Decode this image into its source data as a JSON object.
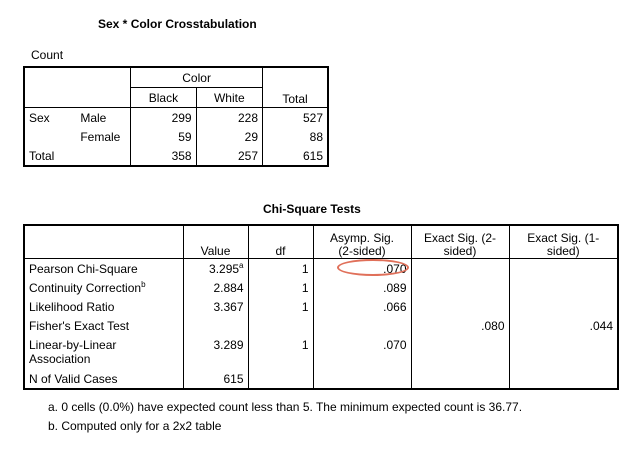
{
  "crosstab": {
    "title": "Sex * Color Crosstabulation",
    "count_label": "Count",
    "color_header": "Color",
    "col_black": "Black",
    "col_white": "White",
    "col_total": "Total",
    "row_group": "Sex",
    "rows": [
      {
        "label": "Male",
        "black": "299",
        "white": "228",
        "total": "527"
      },
      {
        "label": "Female",
        "black": "59",
        "white": "29",
        "total": "88"
      }
    ],
    "total_row": {
      "label": "Total",
      "black": "358",
      "white": "257",
      "total": "615"
    }
  },
  "chisq": {
    "title": "Chi-Square Tests",
    "headers": {
      "value": "Value",
      "df": "df",
      "asymp_1": "Asymp. Sig.",
      "asymp_2": "(2-sided)",
      "exact2_1": "Exact Sig. (2-",
      "exact2_2": "sided)",
      "exact1_1": "Exact Sig. (1-",
      "exact1_2": "sided)"
    },
    "rows": [
      {
        "label": "Pearson Chi-Square",
        "label_sup": "",
        "value": "3.295",
        "value_sup": "a",
        "df": "1",
        "asymp": ".070",
        "exact2": "",
        "exact1": ""
      },
      {
        "label": "Continuity Correction",
        "label_sup": "b",
        "value": "2.884",
        "value_sup": "",
        "df": "1",
        "asymp": ".089",
        "exact2": "",
        "exact1": ""
      },
      {
        "label": "Likelihood Ratio",
        "label_sup": "",
        "value": "3.367",
        "value_sup": "",
        "df": "1",
        "asymp": ".066",
        "exact2": "",
        "exact1": ""
      },
      {
        "label": "Fisher's Exact Test",
        "label_sup": "",
        "value": "",
        "value_sup": "",
        "df": "",
        "asymp": "",
        "exact2": ".080",
        "exact1": ".044"
      },
      {
        "label": "Linear-by-Linear",
        "label_line2": "Association",
        "label_sup": "",
        "value": "3.289",
        "value_sup": "",
        "df": "1",
        "asymp": ".070",
        "exact2": "",
        "exact1": ""
      },
      {
        "label": "N of Valid Cases",
        "label_sup": "",
        "value": "615",
        "value_sup": "",
        "df": "",
        "asymp": "",
        "exact2": "",
        "exact1": ""
      }
    ],
    "footnote_a": "a. 0 cells (0.0%) have expected count less than 5. The minimum expected count is 36.77.",
    "footnote_b": "b. Computed only for a 2x2 table"
  },
  "highlight_color": "#e0705a"
}
